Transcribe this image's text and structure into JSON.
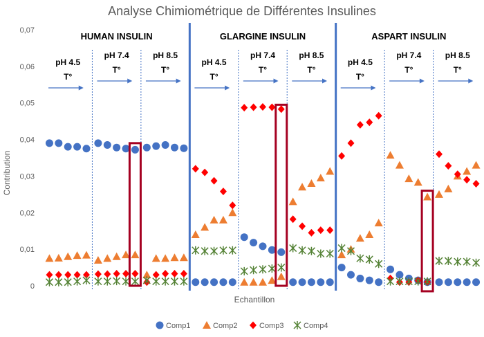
{
  "chart_data": {
    "type": "scatter",
    "title": "Analyse Chimiométrique de Différentes Insulines",
    "xlabel": "Echantillon",
    "ylabel": "Contribution",
    "ylim": [
      0,
      0.07
    ],
    "yticks": [
      "0",
      "0,01",
      "0,02",
      "0,03",
      "0,04",
      "0,05",
      "0,06",
      "0,07"
    ],
    "grid": false,
    "legend_position": "bottom",
    "temperature_label": "T°",
    "groups": [
      {
        "name": "HUMAN INSULIN",
        "conditions": [
          "pH 4.5",
          "pH 7.4",
          "pH 8.5"
        ]
      },
      {
        "name": "GLARGINE INSULIN",
        "conditions": [
          "pH 4.5",
          "pH 7.4",
          "pH 8.5"
        ]
      },
      {
        "name": "ASPART INSULIN",
        "conditions": [
          "pH 4.5",
          "pH 7.4",
          "pH 8.5"
        ]
      }
    ],
    "series": [
      {
        "name": "Comp1",
        "color": "#4472C4",
        "marker": "circle",
        "values": [
          [
            0.039,
            0.039,
            0.038,
            0.038,
            0.0375
          ],
          [
            0.039,
            0.0385,
            0.0378,
            0.0375,
            0.0372
          ],
          [
            0.0378,
            0.0382,
            0.0385,
            0.0378,
            0.0376
          ],
          [
            0.001,
            0.001,
            0.001,
            0.001,
            0.001
          ],
          [
            0.0133,
            0.0118,
            0.0108,
            0.0098,
            0.0092
          ],
          [
            0.001,
            0.001,
            0.001,
            0.001,
            0.001
          ],
          [
            0.005,
            0.003,
            0.002,
            0.0015,
            0.001
          ],
          [
            0.0045,
            0.003,
            0.002,
            0.0015,
            0.001
          ],
          [
            0.001,
            0.001,
            0.001,
            0.001,
            0.001
          ]
        ]
      },
      {
        "name": "Comp2",
        "color": "#ED7D31",
        "marker": "triangle",
        "values": [
          [
            0.0075,
            0.0076,
            0.008,
            0.0083,
            0.0084
          ],
          [
            0.007,
            0.0075,
            0.008,
            0.0085,
            0.0085
          ],
          [
            0.003,
            0.0075,
            0.0075,
            0.0077,
            0.0077
          ],
          [
            0.014,
            0.016,
            0.018,
            0.018,
            0.02
          ],
          [
            0.001,
            0.001,
            0.001,
            0.0015,
            0.0025
          ],
          [
            0.023,
            0.027,
            0.028,
            0.0295,
            0.0313
          ],
          [
            0.0085,
            0.01,
            0.013,
            0.014,
            0.0172
          ],
          [
            0.0357,
            0.033,
            0.0293,
            0.0283,
            0.0243
          ],
          [
            0.025,
            0.0265,
            0.03,
            0.0313,
            0.033
          ]
        ]
      },
      {
        "name": "Comp3",
        "color": "#FF0000",
        "marker": "diamond",
        "values": [
          [
            0.003,
            0.003,
            0.003,
            0.003,
            0.003
          ],
          [
            0.0032,
            0.0032,
            0.0033,
            0.0033,
            0.0033
          ],
          [
            0.001,
            0.003,
            0.0033,
            0.0033,
            0.0033
          ],
          [
            0.032,
            0.031,
            0.0287,
            0.0258,
            0.022
          ],
          [
            0.0487,
            0.0488,
            0.0489,
            0.0488,
            0.0483
          ],
          [
            0.0182,
            0.0163,
            0.0145,
            0.0152,
            0.0152
          ],
          [
            0.0355,
            0.039,
            0.044,
            0.0447,
            0.0465
          ],
          [
            0.002,
            0.001,
            0.001,
            0.0015,
            0.001
          ],
          [
            0.036,
            0.0328,
            0.0305,
            0.029,
            0.0279
          ]
        ]
      },
      {
        "name": "Comp4",
        "color": "#548235",
        "marker": "star",
        "values": [
          [
            0.001,
            0.001,
            0.001,
            0.0012,
            0.0015
          ],
          [
            0.0012,
            0.0012,
            0.0013,
            0.0012,
            0.0012
          ],
          [
            0.0015,
            0.0012,
            0.0012,
            0.0012,
            0.0012
          ],
          [
            0.0097,
            0.0095,
            0.0095,
            0.0097,
            0.0097
          ],
          [
            0.004,
            0.0043,
            0.0045,
            0.0047,
            0.005
          ],
          [
            0.0103,
            0.0097,
            0.0095,
            0.0088,
            0.0088
          ],
          [
            0.0103,
            0.0095,
            0.0075,
            0.0072,
            0.006
          ],
          [
            0.0012,
            0.0012,
            0.0012,
            0.0012,
            0.0012
          ],
          [
            0.0068,
            0.0068,
            0.0066,
            0.0066,
            0.0063
          ]
        ]
      }
    ],
    "highlights": [
      {
        "condition_index": 1,
        "sample_index": 4,
        "y_range": [
          0,
          0.039
        ],
        "color": "#A50021"
      },
      {
        "condition_index": 4,
        "sample_index": 4,
        "y_range": [
          0,
          0.0495
        ],
        "color": "#A50021"
      },
      {
        "condition_index": 7,
        "sample_index": 4,
        "y_range": [
          -0.0015,
          0.026
        ],
        "color": "#A50021"
      }
    ]
  }
}
